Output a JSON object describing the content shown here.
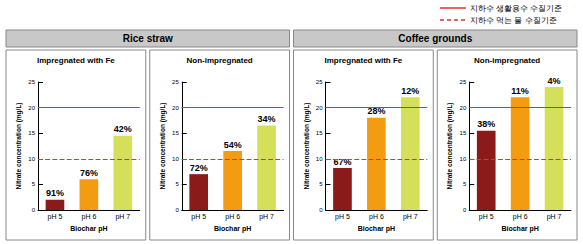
{
  "chart_data": [
    {
      "type": "bar",
      "group": "Rice straw",
      "title": "Impregnated with Fe",
      "x_label": "Biochar pH",
      "y_label": "Nitrate concentration (mg/L)",
      "categories": [
        "pH 5",
        "pH 6",
        "pH 7"
      ],
      "values": [
        2.0,
        6.0,
        14.5
      ],
      "annotations": [
        "91%",
        "76%",
        "42%"
      ],
      "colors": [
        "#8b1a1a",
        "#f39c12",
        "#d4e05a"
      ],
      "ylim": [
        0,
        25
      ],
      "yticks": [
        0,
        5,
        10,
        15,
        20,
        25
      ]
    },
    {
      "type": "bar",
      "group": "Rice straw",
      "title": "Non-impregnated",
      "x_label": "Biochar pH",
      "y_label": "Nitrate concentration (mg/L)",
      "categories": [
        "pH 5",
        "pH 6",
        "pH 7"
      ],
      "values": [
        7.0,
        11.5,
        16.5
      ],
      "annotations": [
        "72%",
        "54%",
        "34%"
      ],
      "colors": [
        "#8b1a1a",
        "#f39c12",
        "#d4e05a"
      ],
      "ylim": [
        0,
        25
      ],
      "yticks": [
        0,
        5,
        10,
        15,
        20,
        25
      ]
    },
    {
      "type": "bar",
      "group": "Coffee grounds",
      "title": "Impregnated with Fe",
      "x_label": "Biochar pH",
      "y_label": "Nitrate concentration (mg/L)",
      "categories": [
        "pH 5",
        "pH 6",
        "pH 7"
      ],
      "values": [
        8.2,
        18.0,
        22.0
      ],
      "annotations": [
        "67%",
        "28%",
        "12%"
      ],
      "colors": [
        "#8b1a1a",
        "#f39c12",
        "#d4e05a"
      ],
      "ylim": [
        0,
        25
      ],
      "yticks": [
        0,
        5,
        10,
        15,
        20,
        25
      ]
    },
    {
      "type": "bar",
      "group": "Coffee grounds",
      "title": "Non-impregnated",
      "x_label": "Biochar pH",
      "y_label": "Nitrate concentration (mg/L)",
      "categories": [
        "pH 5",
        "pH 6",
        "pH 7"
      ],
      "values": [
        15.5,
        22.0,
        24.0
      ],
      "annotations": [
        "38%",
        "11%",
        "4%"
      ],
      "colors": [
        "#8b1a1a",
        "#f39c12",
        "#d4e05a"
      ],
      "ylim": [
        0,
        25
      ],
      "yticks": [
        0,
        5,
        10,
        15,
        20,
        25
      ]
    }
  ],
  "reference_lines": [
    {
      "value": 20,
      "label": "지하수 생활용수 수질기준",
      "line_style": "solid",
      "color": "#e03030"
    },
    {
      "value": 10,
      "label": "지하수 먹는 물 수질기준",
      "line_style": "dashed",
      "color": "#e03030"
    }
  ]
}
